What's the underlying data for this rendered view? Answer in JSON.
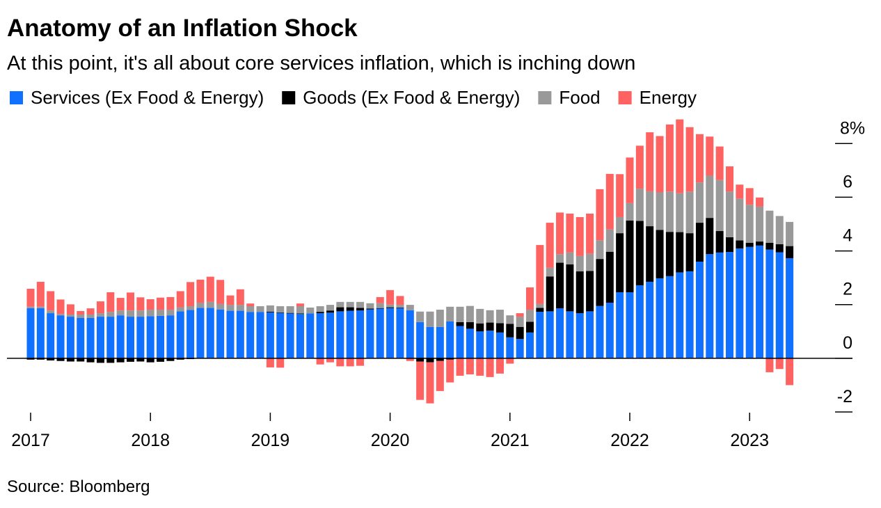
{
  "chart_data": {
    "type": "stacked_bar",
    "title": "Anatomy of an Inflation Shock",
    "subtitle": "At this point, it's all about core services inflation, which is inching down",
    "source": "Source: Bloomberg",
    "categories": [
      "2017",
      null,
      null,
      null,
      null,
      null,
      null,
      null,
      null,
      null,
      null,
      null,
      "2018",
      null,
      null,
      null,
      null,
      null,
      null,
      null,
      null,
      null,
      null,
      null,
      "2019",
      null,
      null,
      null,
      null,
      null,
      null,
      null,
      null,
      null,
      null,
      null,
      "2020",
      null,
      null,
      null,
      null,
      null,
      null,
      null,
      null,
      null,
      null,
      null,
      "2021",
      null,
      null,
      null,
      null,
      null,
      null,
      null,
      null,
      null,
      null,
      null,
      "2022",
      null,
      null,
      null,
      null,
      null,
      null,
      null,
      null,
      null,
      null,
      null,
      "2023",
      null,
      null,
      null,
      null
    ],
    "series": [
      {
        "name": "Services (Ex Food & Energy)",
        "color": "#1070ff",
        "values": [
          1.87,
          1.87,
          1.68,
          1.6,
          1.55,
          1.5,
          1.5,
          1.55,
          1.55,
          1.6,
          1.55,
          1.55,
          1.57,
          1.58,
          1.6,
          1.75,
          1.8,
          1.88,
          1.88,
          1.82,
          1.77,
          1.77,
          1.72,
          1.72,
          1.71,
          1.69,
          1.67,
          1.65,
          1.67,
          1.68,
          1.7,
          1.75,
          1.77,
          1.78,
          1.82,
          1.85,
          1.87,
          1.87,
          1.79,
          1.35,
          1.17,
          1.17,
          1.37,
          1.2,
          1.1,
          1.0,
          1.03,
          0.96,
          0.78,
          0.72,
          0.96,
          1.73,
          1.75,
          1.86,
          1.75,
          1.68,
          1.75,
          1.95,
          2.07,
          2.46,
          2.46,
          2.72,
          2.85,
          2.98,
          3.06,
          3.2,
          3.24,
          3.6,
          3.88,
          3.94,
          3.96,
          4.09,
          4.15,
          4.2,
          4.05,
          3.95,
          3.73
        ]
      },
      {
        "name": "Goods (Ex Food & Energy)",
        "color": "#000000",
        "values": [
          -0.05,
          -0.05,
          -0.08,
          -0.1,
          -0.12,
          -0.12,
          -0.15,
          -0.17,
          -0.17,
          -0.15,
          -0.13,
          -0.12,
          -0.15,
          -0.13,
          -0.1,
          -0.05,
          -0.03,
          0,
          0,
          0,
          0,
          0,
          0,
          0,
          0.03,
          0.02,
          0.02,
          0.02,
          0,
          0.05,
          0.08,
          0.15,
          0.13,
          0.1,
          0.03,
          0.02,
          0.03,
          0.02,
          0,
          -0.12,
          -0.15,
          -0.1,
          -0.05,
          0.15,
          0.25,
          0.3,
          0.3,
          0.35,
          0.5,
          0.45,
          0.4,
          0.15,
          1.3,
          1.7,
          1.75,
          1.56,
          1.5,
          1.75,
          1.9,
          2.2,
          2.67,
          2.4,
          2.07,
          1.8,
          1.65,
          1.5,
          1.42,
          1.45,
          1.35,
          0.8,
          0.55,
          0.3,
          0.15,
          0.15,
          0.25,
          0.3,
          0.45
        ]
      },
      {
        "name": "Food",
        "color": "#999999",
        "values": [
          0.05,
          0.05,
          0.1,
          0.05,
          0.08,
          0.13,
          0.13,
          0.13,
          0.18,
          0.18,
          0.23,
          0.23,
          0.24,
          0.23,
          0.21,
          0.15,
          0.14,
          0.19,
          0.22,
          0.2,
          0.22,
          0.22,
          0.22,
          0.22,
          0.23,
          0.23,
          0.25,
          0.27,
          0.22,
          0.21,
          0.21,
          0.2,
          0.2,
          0.22,
          0.2,
          0.18,
          0.1,
          0.1,
          0.2,
          0.39,
          0.57,
          0.64,
          0.55,
          0.57,
          0.6,
          0.54,
          0.46,
          0.5,
          0.32,
          0.38,
          0.45,
          0.14,
          0.32,
          0.32,
          0.44,
          0.57,
          0.64,
          0.7,
          0.83,
          0.6,
          0.65,
          1.2,
          1.3,
          1.4,
          1.5,
          1.45,
          1.55,
          1.5,
          1.57,
          1.9,
          1.7,
          1.56,
          1.42,
          1.3,
          1.2,
          1.05,
          0.9
        ]
      },
      {
        "name": "Energy",
        "color": "#ff6361",
        "values": [
          0.67,
          0.93,
          0.72,
          0.54,
          0.38,
          0.13,
          0.23,
          0.44,
          0.73,
          0.47,
          0.67,
          0.49,
          0.39,
          0.45,
          0.47,
          0.6,
          0.9,
          0.86,
          0.94,
          0.9,
          0.35,
          0.58,
          0.1,
          0,
          -0.34,
          -0.35,
          0,
          0.1,
          0,
          -0.23,
          -0.15,
          -0.3,
          -0.3,
          -0.28,
          0,
          0.23,
          0.54,
          0.33,
          -0.1,
          -1.43,
          -1.53,
          -1.12,
          -0.85,
          -0.65,
          -0.6,
          -0.65,
          -0.7,
          -0.57,
          -0.2,
          0.13,
          0.83,
          2.2,
          1.68,
          1.55,
          1.45,
          1.45,
          1.5,
          1.9,
          2.07,
          1.6,
          1.7,
          1.6,
          2.2,
          2.1,
          2.5,
          2.75,
          2.4,
          1.8,
          1.46,
          1.25,
          0.94,
          0.52,
          0.62,
          0.34,
          -0.52,
          -0.4,
          -1.0
        ]
      }
    ],
    "ylim": [
      -2,
      9.2
    ],
    "yticks": [
      -2,
      0,
      2,
      4,
      6,
      {
        "value": 8,
        "label": "8%"
      }
    ]
  }
}
